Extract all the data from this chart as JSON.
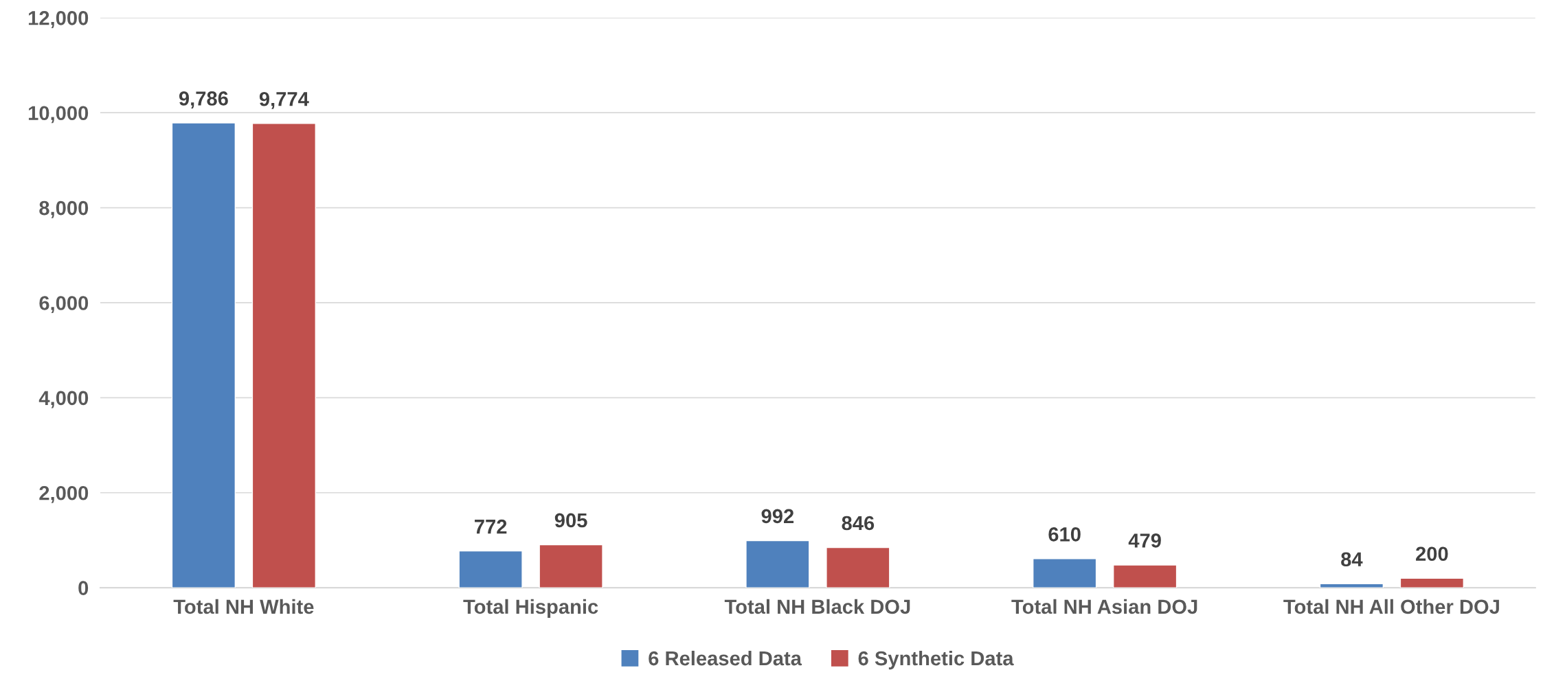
{
  "chart_data": {
    "type": "bar",
    "categories": [
      "Total NH White",
      "Total Hispanic",
      "Total NH Black DOJ",
      "Total NH Asian DOJ",
      "Total NH All Other DOJ"
    ],
    "series": [
      {
        "name": "6 Released Data",
        "color": "#4f81bd",
        "values": [
          9786,
          772,
          992,
          610,
          84
        ],
        "value_labels": [
          "9,786",
          "772",
          "992",
          "610",
          "84"
        ]
      },
      {
        "name": "6 Synthetic Data",
        "color": "#c0504d",
        "values": [
          9774,
          905,
          846,
          479,
          200
        ],
        "value_labels": [
          "9,774",
          "905",
          "846",
          "479",
          "200"
        ]
      }
    ],
    "ylim": [
      0,
      12000
    ],
    "yticks": [
      {
        "value": 0,
        "label": "0"
      },
      {
        "value": 2000,
        "label": "2,000"
      },
      {
        "value": 4000,
        "label": "4,000"
      },
      {
        "value": 6000,
        "label": "6,000"
      },
      {
        "value": 8000,
        "label": "8,000"
      },
      {
        "value": 10000,
        "label": "10,000"
      },
      {
        "value": 12000,
        "label": "12,000"
      }
    ],
    "grid": "y",
    "legend": "bottom"
  }
}
